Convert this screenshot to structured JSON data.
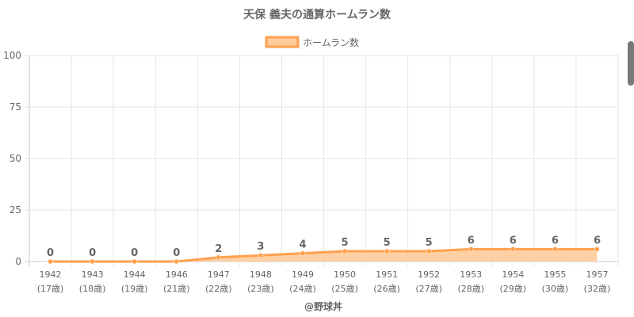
{
  "chart_data": {
    "type": "area",
    "title": "天保 義夫の通算ホームラン数",
    "categories": [
      "1942",
      "1943",
      "1944",
      "1946",
      "1947",
      "1948",
      "1949",
      "1950",
      "1951",
      "1952",
      "1953",
      "1954",
      "1955",
      "1957"
    ],
    "ages": [
      "(17歳)",
      "(18歳)",
      "(19歳)",
      "(21歳)",
      "(22歳)",
      "(23歳)",
      "(24歳)",
      "(25歳)",
      "(26歳)",
      "(27歳)",
      "(28歳)",
      "(29歳)",
      "(30歳)",
      "(32歳)"
    ],
    "series": [
      {
        "name": "ホームラン数",
        "values": [
          0,
          0,
          0,
          0,
          2,
          3,
          4,
          5,
          5,
          5,
          6,
          6,
          6,
          6
        ]
      }
    ],
    "ylim": [
      0,
      100
    ],
    "yticks": [
      0,
      25,
      50,
      75,
      100
    ],
    "grid": true,
    "legend": "top",
    "colors": {
      "line": "#ffa04e",
      "fill": "#ffcb9a",
      "grid": "#e6e6e6",
      "axis": "#c8c8c8"
    }
  },
  "credit": "@野球丼"
}
